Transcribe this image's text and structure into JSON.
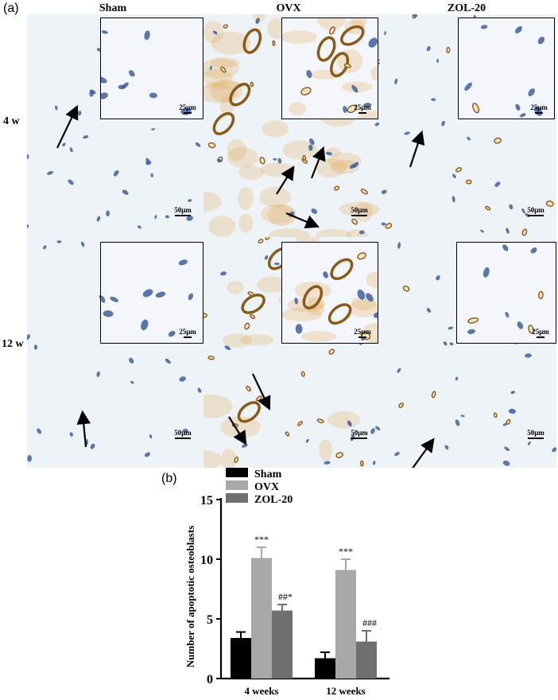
{
  "panel_a_label": "(a)",
  "panel_b_label": "(b)",
  "columns": [
    "Sham",
    "OVX",
    "ZOL-20"
  ],
  "rows": [
    "4 w",
    "12 w"
  ],
  "scale_main": "50μm",
  "scale_inset": "25μm",
  "colors": {
    "bone_bg": "#eef3f8",
    "nucleus_blue": "#3f5f9c",
    "apoptotic_brown": "#8a5a1a",
    "stain_orange": "#e3a24a",
    "sham_bar": "#000000",
    "ovx_bar": "#a8a8a8",
    "zol_bar": "#6f6f6f"
  },
  "chart_data": {
    "type": "bar",
    "categories": [
      "4 weeks",
      "12 weeks"
    ],
    "series": [
      {
        "name": "Sham",
        "values": [
          3.4,
          1.7
        ],
        "errors": [
          0.5,
          0.5
        ]
      },
      {
        "name": "OVX",
        "values": [
          10.1,
          9.1
        ],
        "errors": [
          0.9,
          0.9
        ]
      },
      {
        "name": "ZOL-20",
        "values": [
          5.7,
          3.1
        ],
        "errors": [
          0.5,
          0.9
        ]
      }
    ],
    "annotations": [
      {
        "category": "4 weeks",
        "series": "OVX",
        "text": "***"
      },
      {
        "category": "4 weeks",
        "series": "ZOL-20",
        "text": "##*"
      },
      {
        "category": "12 weeks",
        "series": "OVX",
        "text": "***"
      },
      {
        "category": "12 weeks",
        "series": "ZOL-20",
        "text": "###"
      }
    ],
    "ylabel": "Number of apoptotic osteoblasts",
    "ylim": [
      0,
      15
    ],
    "yticks": [
      0,
      5,
      10,
      15
    ],
    "legend": "top-left"
  }
}
